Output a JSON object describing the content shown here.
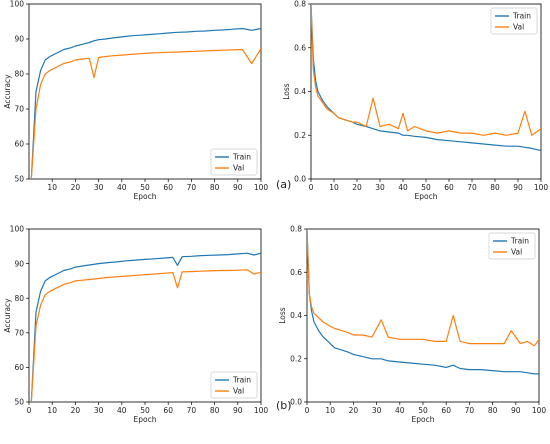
{
  "captions": [
    "(a)",
    "(b)"
  ],
  "colors": {
    "train": "#1f77b4",
    "val": "#ff7f0e"
  },
  "chart_data": [
    {
      "type": "line",
      "panel": "a-accuracy",
      "title": "",
      "xlabel": "Epoch",
      "ylabel": "Accuracy",
      "xlim": [
        0,
        100
      ],
      "ylim": [
        50,
        100
      ],
      "xticks": [
        10,
        20,
        30,
        40,
        50,
        60,
        70,
        80,
        90,
        100
      ],
      "yticks": [
        50,
        60,
        70,
        80,
        90,
        100
      ],
      "legend": {
        "position": "bottom-right",
        "entries": [
          "Train",
          "Val"
        ]
      },
      "x": [
        1,
        3,
        5,
        7,
        9,
        12,
        15,
        18,
        20,
        23,
        26,
        28,
        30,
        33,
        36,
        40,
        44,
        48,
        52,
        56,
        60,
        64,
        68,
        72,
        76,
        80,
        84,
        88,
        92,
        96,
        100
      ],
      "series": [
        {
          "name": "Train",
          "values": [
            50,
            75,
            81,
            84,
            85,
            86,
            87,
            87.5,
            88,
            88.5,
            89,
            89.5,
            89.8,
            90,
            90.3,
            90.6,
            90.9,
            91.1,
            91.3,
            91.5,
            91.7,
            91.9,
            92,
            92.2,
            92.3,
            92.5,
            92.6,
            92.8,
            93,
            92.5,
            93
          ]
        },
        {
          "name": "Val",
          "values": [
            50,
            70,
            77,
            80,
            81,
            82,
            83,
            83.5,
            84,
            84.3,
            84.5,
            79,
            84.7,
            85,
            85.2,
            85.4,
            85.6,
            85.8,
            86,
            86.1,
            86.2,
            86.3,
            86.4,
            86.5,
            86.6,
            86.7,
            86.8,
            86.9,
            87,
            83,
            87.2
          ]
        }
      ]
    },
    {
      "type": "line",
      "panel": "a-loss",
      "title": "",
      "xlabel": "Epoch",
      "ylabel": "Loss",
      "xlim": [
        0,
        100
      ],
      "ylim": [
        0,
        0.8
      ],
      "xticks": [
        0,
        10,
        20,
        30,
        40,
        50,
        60,
        70,
        80,
        90,
        100
      ],
      "yticks": [
        0.0,
        0.2,
        0.4,
        0.6,
        0.8
      ],
      "legend": {
        "position": "top-right",
        "entries": [
          "Train",
          "Val"
        ]
      },
      "x": [
        0,
        1,
        2,
        3,
        5,
        7,
        10,
        12,
        15,
        18,
        20,
        24,
        27,
        30,
        34,
        38,
        40,
        42,
        45,
        50,
        55,
        60,
        65,
        70,
        75,
        80,
        85,
        90,
        93,
        96,
        100
      ],
      "series": [
        {
          "name": "Train",
          "values": [
            0.8,
            0.55,
            0.45,
            0.4,
            0.36,
            0.33,
            0.3,
            0.28,
            0.27,
            0.26,
            0.25,
            0.24,
            0.23,
            0.22,
            0.215,
            0.21,
            0.2,
            0.2,
            0.195,
            0.19,
            0.18,
            0.175,
            0.17,
            0.165,
            0.16,
            0.155,
            0.15,
            0.15,
            0.145,
            0.14,
            0.13
          ]
        },
        {
          "name": "Val",
          "values": [
            0.8,
            0.5,
            0.42,
            0.38,
            0.35,
            0.32,
            0.3,
            0.28,
            0.27,
            0.26,
            0.26,
            0.24,
            0.37,
            0.24,
            0.25,
            0.23,
            0.3,
            0.22,
            0.24,
            0.22,
            0.21,
            0.22,
            0.21,
            0.21,
            0.2,
            0.21,
            0.2,
            0.21,
            0.31,
            0.2,
            0.23
          ]
        }
      ]
    },
    {
      "type": "line",
      "panel": "b-accuracy",
      "title": "",
      "xlabel": "Epoch",
      "ylabel": "Accuracy",
      "xlim": [
        0,
        100
      ],
      "ylim": [
        50,
        100
      ],
      "xticks": [
        0,
        10,
        20,
        30,
        40,
        50,
        60,
        70,
        80,
        90,
        100
      ],
      "yticks": [
        50,
        60,
        70,
        80,
        90,
        100
      ],
      "legend": {
        "position": "bottom-right",
        "entries": [
          "Train",
          "Val"
        ]
      },
      "x": [
        1,
        3,
        5,
        7,
        9,
        12,
        15,
        18,
        20,
        23,
        26,
        30,
        34,
        38,
        42,
        46,
        50,
        54,
        58,
        62,
        64,
        66,
        70,
        74,
        78,
        82,
        86,
        90,
        94,
        97,
        100
      ],
      "series": [
        {
          "name": "Train",
          "values": [
            50,
            76,
            82,
            85,
            86,
            87,
            88,
            88.5,
            89,
            89.3,
            89.6,
            90,
            90.3,
            90.5,
            90.8,
            91,
            91.2,
            91.4,
            91.6,
            91.8,
            89.5,
            92,
            92.1,
            92.3,
            92.4,
            92.5,
            92.6,
            92.8,
            93,
            92.5,
            93
          ]
        },
        {
          "name": "Val",
          "values": [
            50,
            72,
            78,
            81,
            82,
            83,
            84,
            84.5,
            85,
            85.2,
            85.4,
            85.7,
            86,
            86.2,
            86.4,
            86.6,
            86.8,
            87,
            87.2,
            87.4,
            83,
            87.6,
            87.7,
            87.8,
            87.9,
            88,
            88,
            88.1,
            88.2,
            87,
            87.5
          ]
        }
      ]
    },
    {
      "type": "line",
      "panel": "b-loss",
      "title": "",
      "xlabel": "Epoch",
      "ylabel": "Loss",
      "xlim": [
        0,
        100
      ],
      "ylim": [
        0,
        0.8
      ],
      "xticks": [
        0,
        10,
        20,
        30,
        40,
        50,
        60,
        70,
        80,
        90,
        100
      ],
      "yticks": [
        0.0,
        0.2,
        0.4,
        0.6,
        0.8
      ],
      "legend": {
        "position": "top-right",
        "entries": [
          "Train",
          "Val"
        ]
      },
      "x": [
        0,
        1,
        2,
        3,
        5,
        7,
        10,
        12,
        15,
        18,
        20,
        24,
        28,
        32,
        35,
        40,
        45,
        50,
        55,
        60,
        63,
        66,
        70,
        75,
        80,
        85,
        88,
        92,
        95,
        98,
        100
      ],
      "series": [
        {
          "name": "Train",
          "values": [
            0.8,
            0.5,
            0.42,
            0.37,
            0.33,
            0.3,
            0.27,
            0.25,
            0.24,
            0.23,
            0.22,
            0.21,
            0.2,
            0.2,
            0.19,
            0.185,
            0.18,
            0.175,
            0.17,
            0.16,
            0.17,
            0.155,
            0.15,
            0.15,
            0.145,
            0.14,
            0.14,
            0.14,
            0.135,
            0.13,
            0.13
          ]
        },
        {
          "name": "Val",
          "values": [
            0.8,
            0.5,
            0.44,
            0.41,
            0.39,
            0.37,
            0.35,
            0.34,
            0.33,
            0.32,
            0.31,
            0.31,
            0.3,
            0.38,
            0.3,
            0.29,
            0.29,
            0.29,
            0.28,
            0.28,
            0.4,
            0.28,
            0.27,
            0.27,
            0.27,
            0.27,
            0.33,
            0.27,
            0.28,
            0.26,
            0.29
          ]
        }
      ]
    }
  ]
}
